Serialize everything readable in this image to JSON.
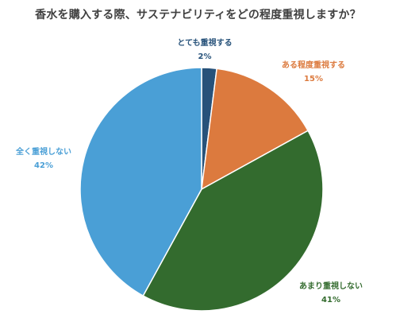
{
  "chart_data": {
    "type": "pie",
    "title": "香水を購入する際、サステナビリティをどの程度重視しますか？",
    "slices": [
      {
        "label": "とても重視する",
        "value": 2,
        "value_label": "2%",
        "color": "#27527a"
      },
      {
        "label": "ある程度重視する",
        "value": 15,
        "value_label": "15%",
        "color": "#dc7a3e"
      },
      {
        "label": "あまり重視しない",
        "value": 41,
        "value_label": "41%",
        "color": "#336b2e"
      },
      {
        "label": "全く重視しない",
        "value": 42,
        "value_label": "42%",
        "color": "#4a9fd6"
      }
    ],
    "start_angle": "12 o'clock",
    "direction": "clockwise",
    "legend": "none"
  }
}
